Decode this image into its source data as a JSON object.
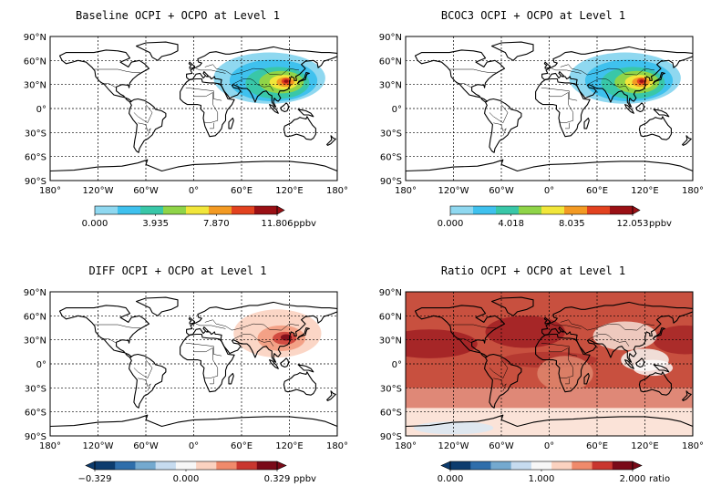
{
  "axes": {
    "lat_labels": [
      "90°N",
      "60°N",
      "30°N",
      "0°",
      "30°S",
      "60°S",
      "90°S"
    ],
    "lon_labels": [
      "180°",
      "120°W",
      "60°W",
      "0°",
      "60°E",
      "120°E",
      "180°"
    ]
  },
  "panels": [
    {
      "title": "Baseline OCPI + OCPO at Level 1",
      "colorbar": {
        "ticks": [
          "0.000",
          "3.935",
          "7.870",
          "11.806"
        ],
        "unit": "ppbv",
        "style": "sequential"
      }
    },
    {
      "title": "BCOC3 OCPI + OCPO at Level 1",
      "colorbar": {
        "ticks": [
          "0.000",
          "4.018",
          "8.035",
          "12.053"
        ],
        "unit": "ppbv",
        "style": "sequential"
      }
    },
    {
      "title": "DIFF OCPI + OCPO at Level 1",
      "colorbar": {
        "ticks": [
          "−0.329",
          "0.000",
          "0.329"
        ],
        "unit": "ppbv",
        "style": "diverging"
      }
    },
    {
      "title": "Ratio OCPI + OCPO at Level 1",
      "colorbar": {
        "ticks": [
          "0.000",
          "1.000",
          "2.000"
        ],
        "unit": "ratio",
        "style": "diverging"
      }
    }
  ],
  "colors": {
    "sequential": [
      "#8fd8f0",
      "#3fc1ee",
      "#39c7a8",
      "#8fd448",
      "#f1e63a",
      "#f39a23",
      "#e2421f",
      "#9a1015"
    ],
    "diverging": [
      "#0d3c6e",
      "#2f6eab",
      "#74a9cf",
      "#c6dbef",
      "#f7f7f7",
      "#fbd2c0",
      "#f08a6b",
      "#c9362f",
      "#7a0a18"
    ],
    "ratio_fill": "#c8503f",
    "ratio_fill_dark": "#9e1c22",
    "ratio_fill_light": "#e8a090",
    "coast": "#000000"
  }
}
